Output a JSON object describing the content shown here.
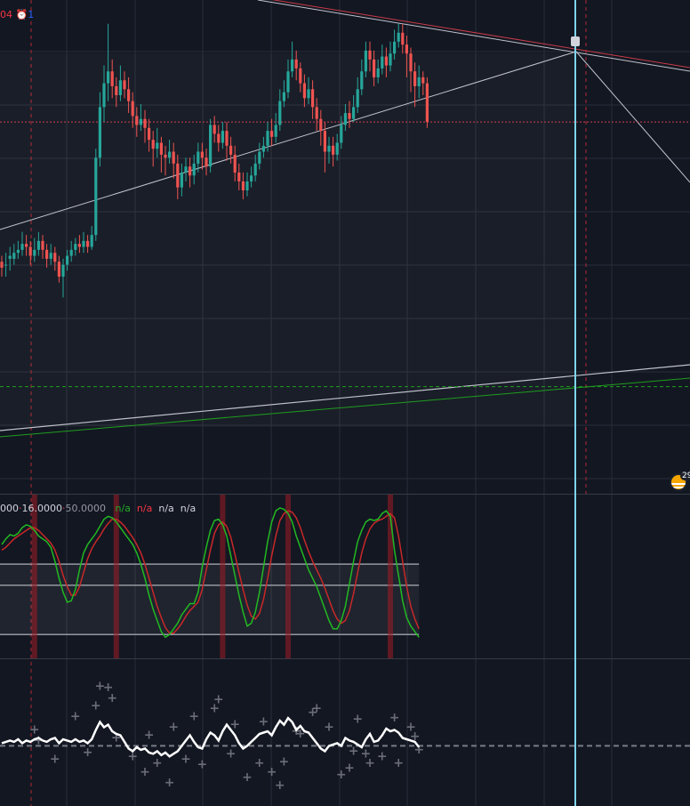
{
  "header": {
    "suffix": "04",
    "alert_count": "1"
  },
  "oscillator_header": {
    "p1": "000",
    "p2": "16.0000",
    "p3": "50.0000",
    "v1": "n/a",
    "v2": "n/a",
    "v3": "n/a",
    "v4": "n/a"
  },
  "flag_badge": "29",
  "colors": {
    "background": "#131722",
    "grid": "#2a2e39",
    "up": "#26a69a",
    "down": "#ef5350",
    "fast_line": "#22b922",
    "slow_line": "#c82828",
    "cursor": "#7ed4ef"
  },
  "chart_data": [
    {
      "type": "candlestick",
      "title": "",
      "candles": [
        [
          0.98,
          0.96,
          1.0,
          0.93
        ],
        [
          0.97,
          0.97,
          1.01,
          0.93
        ],
        [
          0.99,
          1.0,
          1.03,
          0.95
        ],
        [
          0.99,
          1.01,
          1.04,
          0.97
        ],
        [
          1.01,
          1.02,
          1.05,
          0.99
        ],
        [
          1.02,
          1.04,
          1.08,
          1.0
        ],
        [
          1.04,
          1.03,
          1.07,
          1.0
        ],
        [
          1.03,
          1.0,
          1.05,
          0.97
        ],
        [
          1.0,
          1.02,
          1.06,
          0.98
        ],
        [
          1.02,
          1.05,
          1.08,
          1.0
        ],
        [
          1.05,
          1.02,
          1.07,
          0.99
        ],
        [
          1.02,
          0.99,
          1.04,
          0.96
        ],
        [
          0.99,
          1.01,
          1.04,
          0.97
        ],
        [
          1.01,
          0.98,
          1.03,
          0.95
        ],
        [
          0.98,
          0.93,
          1.0,
          0.91
        ],
        [
          0.93,
          0.97,
          0.99,
          0.86
        ],
        [
          0.97,
          1.0,
          1.02,
          0.95
        ],
        [
          1.0,
          1.02,
          1.05,
          0.98
        ],
        [
          1.02,
          1.04,
          1.06,
          1.0
        ],
        [
          1.04,
          1.03,
          1.07,
          1.01
        ],
        [
          1.03,
          1.05,
          1.08,
          1.01
        ],
        [
          1.05,
          1.03,
          1.07,
          1.01
        ],
        [
          1.03,
          1.07,
          1.1,
          1.02
        ],
        [
          1.07,
          1.33,
          1.36,
          1.05
        ],
        [
          1.33,
          1.5,
          1.55,
          1.3
        ],
        [
          1.5,
          1.58,
          1.64,
          1.45
        ],
        [
          1.58,
          1.62,
          1.78,
          1.52
        ],
        [
          1.62,
          1.57,
          1.66,
          1.53
        ],
        [
          1.57,
          1.54,
          1.6,
          1.5
        ],
        [
          1.54,
          1.59,
          1.64,
          1.52
        ],
        [
          1.59,
          1.56,
          1.62,
          1.53
        ],
        [
          1.56,
          1.52,
          1.6,
          1.48
        ],
        [
          1.52,
          1.47,
          1.55,
          1.43
        ],
        [
          1.47,
          1.44,
          1.5,
          1.4
        ],
        [
          1.44,
          1.46,
          1.51,
          1.42
        ],
        [
          1.46,
          1.43,
          1.49,
          1.38
        ],
        [
          1.43,
          1.39,
          1.46,
          1.35
        ],
        [
          1.39,
          1.36,
          1.42,
          1.3
        ],
        [
          1.36,
          1.38,
          1.43,
          1.33
        ],
        [
          1.38,
          1.34,
          1.4,
          1.28
        ],
        [
          1.34,
          1.33,
          1.37,
          1.27
        ],
        [
          1.33,
          1.35,
          1.39,
          1.31
        ],
        [
          1.35,
          1.31,
          1.38,
          1.26
        ],
        [
          1.31,
          1.23,
          1.34,
          1.19
        ],
        [
          1.23,
          1.28,
          1.31,
          1.2
        ],
        [
          1.28,
          1.3,
          1.33,
          1.25
        ],
        [
          1.3,
          1.27,
          1.33,
          1.23
        ],
        [
          1.27,
          1.31,
          1.34,
          1.24
        ],
        [
          1.31,
          1.35,
          1.38,
          1.28
        ],
        [
          1.35,
          1.33,
          1.38,
          1.29
        ],
        [
          1.33,
          1.3,
          1.36,
          1.27
        ],
        [
          1.3,
          1.44,
          1.46,
          1.28
        ],
        [
          1.44,
          1.41,
          1.47,
          1.38
        ],
        [
          1.41,
          1.38,
          1.44,
          1.35
        ],
        [
          1.38,
          1.42,
          1.45,
          1.36
        ],
        [
          1.42,
          1.37,
          1.45,
          1.32
        ],
        [
          1.37,
          1.34,
          1.4,
          1.31
        ],
        [
          1.34,
          1.28,
          1.37,
          1.25
        ],
        [
          1.28,
          1.25,
          1.31,
          1.22
        ],
        [
          1.25,
          1.22,
          1.28,
          1.19
        ],
        [
          1.22,
          1.25,
          1.28,
          1.2
        ],
        [
          1.25,
          1.27,
          1.3,
          1.23
        ],
        [
          1.27,
          1.31,
          1.34,
          1.25
        ],
        [
          1.31,
          1.35,
          1.38,
          1.29
        ],
        [
          1.35,
          1.37,
          1.4,
          1.33
        ],
        [
          1.37,
          1.42,
          1.45,
          1.35
        ],
        [
          1.42,
          1.4,
          1.46,
          1.37
        ],
        [
          1.4,
          1.44,
          1.48,
          1.38
        ],
        [
          1.44,
          1.52,
          1.56,
          1.42
        ],
        [
          1.52,
          1.55,
          1.59,
          1.5
        ],
        [
          1.55,
          1.62,
          1.66,
          1.53
        ],
        [
          1.62,
          1.66,
          1.72,
          1.6
        ],
        [
          1.66,
          1.63,
          1.69,
          1.59
        ],
        [
          1.63,
          1.58,
          1.65,
          1.55
        ],
        [
          1.58,
          1.53,
          1.61,
          1.5
        ],
        [
          1.53,
          1.56,
          1.6,
          1.51
        ],
        [
          1.56,
          1.5,
          1.59,
          1.46
        ],
        [
          1.5,
          1.46,
          1.53,
          1.42
        ],
        [
          1.46,
          1.42,
          1.49,
          1.37
        ],
        [
          1.42,
          1.35,
          1.45,
          1.28
        ],
        [
          1.35,
          1.37,
          1.4,
          1.31
        ],
        [
          1.37,
          1.34,
          1.4,
          1.3
        ],
        [
          1.34,
          1.38,
          1.41,
          1.32
        ],
        [
          1.38,
          1.44,
          1.47,
          1.36
        ],
        [
          1.44,
          1.48,
          1.51,
          1.42
        ],
        [
          1.48,
          1.46,
          1.52,
          1.43
        ],
        [
          1.46,
          1.5,
          1.54,
          1.45
        ],
        [
          1.5,
          1.56,
          1.6,
          1.48
        ],
        [
          1.56,
          1.62,
          1.66,
          1.54
        ],
        [
          1.62,
          1.69,
          1.72,
          1.6
        ],
        [
          1.69,
          1.66,
          1.72,
          1.62
        ],
        [
          1.66,
          1.6,
          1.69,
          1.57
        ],
        [
          1.6,
          1.63,
          1.66,
          1.58
        ],
        [
          1.63,
          1.67,
          1.71,
          1.61
        ],
        [
          1.67,
          1.64,
          1.7,
          1.6
        ],
        [
          1.64,
          1.68,
          1.72,
          1.62
        ],
        [
          1.68,
          1.72,
          1.76,
          1.66
        ],
        [
          1.72,
          1.75,
          1.78,
          1.7
        ],
        [
          1.75,
          1.71,
          1.78,
          1.68
        ],
        [
          1.71,
          1.68,
          1.74,
          1.6
        ],
        [
          1.68,
          1.62,
          1.7,
          1.55
        ],
        [
          1.62,
          1.57,
          1.65,
          1.5
        ],
        [
          1.57,
          1.6,
          1.64,
          1.53
        ],
        [
          1.6,
          1.58,
          1.62,
          1.54
        ],
        [
          1.58,
          1.45,
          1.6,
          1.43
        ]
      ],
      "bar_spacing": 4.6,
      "marked_price": 1.45,
      "dashed_level": 0.56,
      "ylim": [
        0.2,
        1.86
      ]
    },
    {
      "type": "line",
      "title": "",
      "series": [
        {
          "values": [
            74,
            78,
            81,
            80,
            82,
            86,
            88,
            87,
            84,
            80,
            78,
            76,
            72,
            62,
            50,
            40,
            33,
            34,
            42,
            56,
            68,
            74,
            78,
            82,
            87,
            92,
            94,
            93,
            90,
            86,
            82,
            78,
            74,
            68,
            60,
            50,
            38,
            28,
            20,
            12,
            8,
            10,
            14,
            18,
            24,
            28,
            32,
            32,
            40,
            58,
            72,
            84,
            91,
            92,
            88,
            80,
            66,
            52,
            38,
            26,
            16,
            18,
            26,
            40,
            58,
            76,
            90,
            98,
            100,
            99,
            96,
            90,
            80,
            72,
            64,
            56,
            50,
            44,
            36,
            28,
            20,
            14,
            14,
            20,
            30,
            46,
            62,
            76,
            84,
            90,
            92,
            91,
            92,
            96,
            98,
            94,
            70,
            52,
            34,
            22,
            16,
            12,
            8
          ]
        },
        {
          "values": [
            70,
            72,
            75,
            78,
            80,
            82,
            84,
            86,
            86,
            84,
            81,
            78,
            75,
            70,
            62,
            52,
            44,
            38,
            38,
            44,
            54,
            64,
            71,
            76,
            80,
            85,
            89,
            92,
            92,
            90,
            87,
            83,
            79,
            74,
            68,
            60,
            50,
            40,
            30,
            22,
            15,
            11,
            11,
            14,
            18,
            23,
            27,
            30,
            33,
            42,
            56,
            70,
            82,
            88,
            90,
            87,
            79,
            67,
            54,
            42,
            31,
            23,
            21,
            25,
            35,
            50,
            66,
            80,
            91,
            96,
            98,
            97,
            93,
            86,
            77,
            69,
            62,
            56,
            50,
            43,
            35,
            27,
            21,
            18,
            20,
            27,
            39,
            54,
            68,
            78,
            85,
            89,
            91,
            92,
            94,
            96,
            93,
            80,
            62,
            44,
            30,
            21,
            14
          ]
        }
      ],
      "upper_band": 60,
      "middle_band": 45,
      "lower_band": 10,
      "ylim": [
        -5,
        105
      ]
    },
    {
      "type": "line",
      "title": "",
      "series": [
        {
          "values": [
            2,
            3,
            4,
            3,
            5,
            2,
            4,
            3,
            5,
            6,
            4,
            3,
            5,
            6,
            2,
            5,
            4,
            3,
            5,
            3,
            4,
            2,
            5,
            12,
            18,
            14,
            16,
            11,
            9,
            8,
            3,
            -2,
            -4,
            -1,
            -3,
            -2,
            -5,
            -6,
            -4,
            -7,
            -5,
            -8,
            -6,
            -4,
            0,
            4,
            8,
            3,
            -1,
            -2,
            5,
            10,
            8,
            4,
            11,
            16,
            12,
            8,
            2,
            -2,
            0,
            3,
            6,
            9,
            10,
            11,
            8,
            14,
            19,
            16,
            21,
            18,
            12,
            15,
            11,
            10,
            6,
            2,
            -2,
            -4,
            0,
            1,
            2,
            0,
            6,
            4,
            3,
            1,
            -1,
            5,
            9,
            3,
            4,
            8,
            13,
            11,
            12,
            10,
            6,
            5,
            4,
            3,
            -1
          ]
        }
      ],
      "markers": [
        [
          8,
          12
        ],
        [
          9,
          4
        ],
        [
          13,
          -10
        ],
        [
          18,
          22
        ],
        [
          21,
          -5
        ],
        [
          23,
          30
        ],
        [
          24,
          45
        ],
        [
          26,
          44
        ],
        [
          27,
          36
        ],
        [
          28,
          6
        ],
        [
          32,
          -8
        ],
        [
          35,
          -20
        ],
        [
          36,
          8
        ],
        [
          38,
          -13
        ],
        [
          41,
          -28
        ],
        [
          42,
          14
        ],
        [
          45,
          -10
        ],
        [
          47,
          22
        ],
        [
          49,
          -14
        ],
        [
          52,
          28
        ],
        [
          53,
          35
        ],
        [
          56,
          -6
        ],
        [
          57,
          16
        ],
        [
          60,
          -24
        ],
        [
          63,
          -13
        ],
        [
          64,
          18
        ],
        [
          66,
          -20
        ],
        [
          68,
          -30
        ],
        [
          69,
          -12
        ],
        [
          72,
          11
        ],
        [
          73,
          9
        ],
        [
          76,
          25
        ],
        [
          77,
          28
        ],
        [
          80,
          14
        ],
        [
          83,
          -22
        ],
        [
          85,
          -17
        ],
        [
          86,
          -4
        ],
        [
          87,
          20
        ],
        [
          89,
          -6
        ],
        [
          90,
          -13
        ],
        [
          93,
          -8
        ],
        [
          96,
          21
        ],
        [
          97,
          -13
        ],
        [
          100,
          14
        ],
        [
          101,
          7
        ],
        [
          102,
          -3
        ]
      ],
      "ylim": [
        -40,
        60
      ]
    }
  ]
}
